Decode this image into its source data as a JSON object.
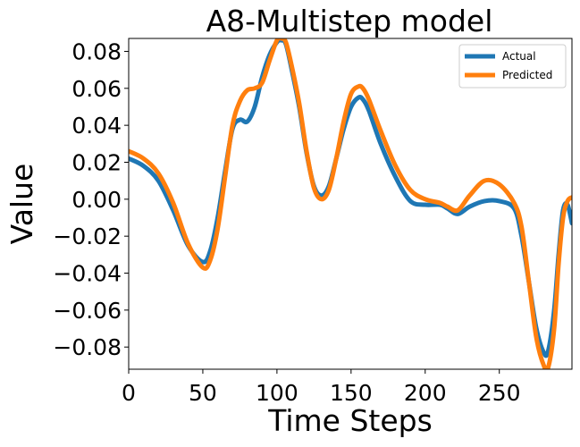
{
  "chart_data": {
    "type": "line",
    "title": "A8-Multistep model",
    "xlabel": "Time Steps",
    "ylabel": "Value",
    "xlim": [
      0,
      299
    ],
    "ylim": [
      -0.092,
      0.087
    ],
    "xticks": [
      0,
      50,
      100,
      150,
      200,
      250
    ],
    "yticks": [
      0.08,
      0.06,
      0.04,
      0.02,
      0.0,
      -0.02,
      -0.04,
      -0.06,
      -0.08
    ],
    "xtick_labels": [
      "0",
      "50",
      "100",
      "150",
      "200",
      "250"
    ],
    "ytick_labels": [
      "0.08",
      "0.06",
      "0.04",
      "0.02",
      "0.00",
      "−0.02",
      "−0.04",
      "−0.06",
      "−0.08"
    ],
    "grid": false,
    "legend_position": "top-right",
    "series": [
      {
        "name": "Actual",
        "color": "#1f77b4",
        "x": [
          0,
          10,
          20,
          30,
          40,
          50,
          55,
          60,
          65,
          70,
          75,
          80,
          85,
          90,
          95,
          100,
          103,
          106,
          110,
          115,
          120,
          125,
          130,
          135,
          140,
          145,
          150,
          155,
          158,
          162,
          170,
          180,
          190,
          200,
          210,
          215,
          222,
          230,
          240,
          250,
          260,
          265,
          270,
          275,
          280,
          283,
          287,
          290,
          293,
          296,
          299
        ],
        "y": [
          0.022,
          0.018,
          0.01,
          -0.006,
          -0.025,
          -0.034,
          -0.028,
          -0.01,
          0.015,
          0.038,
          0.043,
          0.042,
          0.05,
          0.066,
          0.078,
          0.085,
          0.086,
          0.084,
          0.07,
          0.05,
          0.025,
          0.007,
          0.002,
          0.007,
          0.022,
          0.038,
          0.05,
          0.055,
          0.054,
          0.048,
          0.03,
          0.012,
          -0.001,
          -0.003,
          -0.003,
          -0.005,
          -0.008,
          -0.004,
          -0.001,
          -0.001,
          -0.005,
          -0.02,
          -0.045,
          -0.07,
          -0.083,
          -0.082,
          -0.06,
          -0.03,
          -0.006,
          -0.003,
          -0.013
        ]
      },
      {
        "name": "Predicted",
        "color": "#ff7f0e",
        "x": [
          0,
          10,
          20,
          30,
          40,
          50,
          55,
          60,
          65,
          70,
          75,
          80,
          85,
          90,
          95,
          100,
          103,
          106,
          110,
          115,
          120,
          125,
          130,
          135,
          140,
          145,
          150,
          155,
          158,
          162,
          170,
          180,
          190,
          200,
          210,
          215,
          222,
          230,
          240,
          250,
          260,
          265,
          270,
          275,
          280,
          283,
          287,
          290,
          293,
          296,
          299
        ],
        "y": [
          0.026,
          0.022,
          0.014,
          -0.002,
          -0.024,
          -0.037,
          -0.033,
          -0.016,
          0.012,
          0.04,
          0.053,
          0.059,
          0.06,
          0.063,
          0.075,
          0.086,
          0.087,
          0.085,
          0.072,
          0.052,
          0.026,
          0.006,
          0.0,
          0.005,
          0.022,
          0.042,
          0.057,
          0.061,
          0.06,
          0.054,
          0.037,
          0.018,
          0.005,
          0.0,
          -0.002,
          -0.004,
          -0.006,
          0.002,
          0.01,
          0.008,
          -0.002,
          -0.015,
          -0.045,
          -0.075,
          -0.09,
          -0.091,
          -0.07,
          -0.035,
          -0.01,
          -0.001,
          0.001
        ]
      }
    ]
  }
}
